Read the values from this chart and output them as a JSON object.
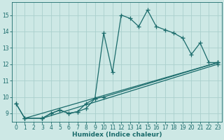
{
  "xlabel": "Humidex (Indice chaleur)",
  "ylabel": "",
  "xlim": [
    -0.5,
    23.5
  ],
  "ylim": [
    8.5,
    15.8
  ],
  "xticks": [
    0,
    1,
    2,
    3,
    4,
    5,
    6,
    7,
    8,
    9,
    10,
    11,
    12,
    13,
    14,
    15,
    16,
    17,
    18,
    19,
    20,
    21,
    22,
    23
  ],
  "yticks": [
    9,
    10,
    11,
    12,
    13,
    14,
    15
  ],
  "bg_color": "#cde8e5",
  "line_color": "#1a6b6b",
  "grid_color": "#aacfcc",
  "lines": [
    {
      "x": [
        0,
        1,
        3,
        4,
        5,
        6,
        7,
        8,
        9,
        10,
        11,
        12,
        13,
        14,
        15,
        16,
        17,
        18,
        19,
        20,
        21,
        22,
        23
      ],
      "y": [
        9.6,
        8.7,
        8.7,
        9.0,
        9.2,
        9.0,
        9.1,
        9.3,
        9.9,
        13.9,
        11.5,
        15.0,
        14.8,
        14.3,
        15.3,
        14.3,
        14.1,
        13.9,
        13.6,
        12.6,
        13.3,
        12.1,
        12.1
      ]
    },
    {
      "x": [
        0,
        1,
        3,
        4,
        5,
        6,
        7,
        8,
        9,
        10,
        23
      ],
      "y": [
        9.6,
        8.7,
        8.7,
        9.0,
        9.2,
        9.0,
        9.1,
        9.6,
        9.9,
        10.0,
        12.1
      ]
    },
    {
      "x": [
        1,
        23
      ],
      "y": [
        8.7,
        12.1
      ]
    },
    {
      "x": [
        3,
        23
      ],
      "y": [
        8.7,
        12.0
      ]
    }
  ],
  "marker": "+",
  "marker_size": 4,
  "marker_edge_width": 0.9,
  "line_width": 0.9,
  "tick_fontsize": 5.5,
  "xlabel_fontsize": 6.5
}
